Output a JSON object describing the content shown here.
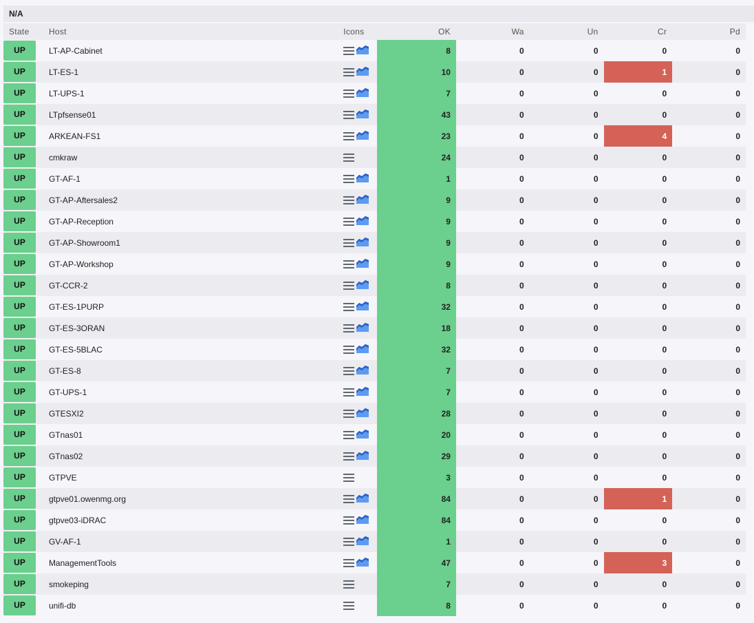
{
  "title": "N/A",
  "columns": [
    "State",
    "Host",
    "Icons",
    "OK",
    "Wa",
    "Un",
    "Cr",
    "Pd"
  ],
  "colors": {
    "up": "#6bcf8d",
    "crit": "#d46256"
  },
  "rows": [
    {
      "state": "UP",
      "host": "LT-AP-Cabinet",
      "graph": true,
      "ok": "8",
      "wa": "0",
      "un": "0",
      "cr": "0",
      "pd": "0"
    },
    {
      "state": "UP",
      "host": "LT-ES-1",
      "graph": true,
      "ok": "10",
      "wa": "0",
      "un": "0",
      "cr": "1",
      "pd": "0"
    },
    {
      "state": "UP",
      "host": "LT-UPS-1",
      "graph": true,
      "ok": "7",
      "wa": "0",
      "un": "0",
      "cr": "0",
      "pd": "0"
    },
    {
      "state": "UP",
      "host": "LTpfsense01",
      "graph": true,
      "ok": "43",
      "wa": "0",
      "un": "0",
      "cr": "0",
      "pd": "0"
    },
    {
      "state": "UP",
      "host": "ARKEAN-FS1",
      "graph": true,
      "ok": "23",
      "wa": "0",
      "un": "0",
      "cr": "4",
      "pd": "0"
    },
    {
      "state": "UP",
      "host": "cmkraw",
      "graph": false,
      "ok": "24",
      "wa": "0",
      "un": "0",
      "cr": "0",
      "pd": "0"
    },
    {
      "state": "UP",
      "host": "GT-AF-1",
      "graph": true,
      "ok": "1",
      "wa": "0",
      "un": "0",
      "cr": "0",
      "pd": "0"
    },
    {
      "state": "UP",
      "host": "GT-AP-Aftersales2",
      "graph": true,
      "ok": "9",
      "wa": "0",
      "un": "0",
      "cr": "0",
      "pd": "0"
    },
    {
      "state": "UP",
      "host": "GT-AP-Reception",
      "graph": true,
      "ok": "9",
      "wa": "0",
      "un": "0",
      "cr": "0",
      "pd": "0"
    },
    {
      "state": "UP",
      "host": "GT-AP-Showroom1",
      "graph": true,
      "ok": "9",
      "wa": "0",
      "un": "0",
      "cr": "0",
      "pd": "0"
    },
    {
      "state": "UP",
      "host": "GT-AP-Workshop",
      "graph": true,
      "ok": "9",
      "wa": "0",
      "un": "0",
      "cr": "0",
      "pd": "0"
    },
    {
      "state": "UP",
      "host": "GT-CCR-2",
      "graph": true,
      "ok": "8",
      "wa": "0",
      "un": "0",
      "cr": "0",
      "pd": "0"
    },
    {
      "state": "UP",
      "host": "GT-ES-1PURP",
      "graph": true,
      "ok": "32",
      "wa": "0",
      "un": "0",
      "cr": "0",
      "pd": "0"
    },
    {
      "state": "UP",
      "host": "GT-ES-3ORAN",
      "graph": true,
      "ok": "18",
      "wa": "0",
      "un": "0",
      "cr": "0",
      "pd": "0"
    },
    {
      "state": "UP",
      "host": "GT-ES-5BLAC",
      "graph": true,
      "ok": "32",
      "wa": "0",
      "un": "0",
      "cr": "0",
      "pd": "0"
    },
    {
      "state": "UP",
      "host": "GT-ES-8",
      "graph": true,
      "ok": "7",
      "wa": "0",
      "un": "0",
      "cr": "0",
      "pd": "0"
    },
    {
      "state": "UP",
      "host": "GT-UPS-1",
      "graph": true,
      "ok": "7",
      "wa": "0",
      "un": "0",
      "cr": "0",
      "pd": "0"
    },
    {
      "state": "UP",
      "host": "GTESXI2",
      "graph": true,
      "ok": "28",
      "wa": "0",
      "un": "0",
      "cr": "0",
      "pd": "0"
    },
    {
      "state": "UP",
      "host": "GTnas01",
      "graph": true,
      "ok": "20",
      "wa": "0",
      "un": "0",
      "cr": "0",
      "pd": "0"
    },
    {
      "state": "UP",
      "host": "GTnas02",
      "graph": true,
      "ok": "29",
      "wa": "0",
      "un": "0",
      "cr": "0",
      "pd": "0"
    },
    {
      "state": "UP",
      "host": "GTPVE",
      "graph": false,
      "ok": "3",
      "wa": "0",
      "un": "0",
      "cr": "0",
      "pd": "0"
    },
    {
      "state": "UP",
      "host": "gtpve01.owenmg.org",
      "graph": true,
      "ok": "84",
      "wa": "0",
      "un": "0",
      "cr": "1",
      "pd": "0"
    },
    {
      "state": "UP",
      "host": "gtpve03-iDRAC",
      "graph": true,
      "ok": "84",
      "wa": "0",
      "un": "0",
      "cr": "0",
      "pd": "0"
    },
    {
      "state": "UP",
      "host": "GV-AF-1",
      "graph": true,
      "ok": "1",
      "wa": "0",
      "un": "0",
      "cr": "0",
      "pd": "0"
    },
    {
      "state": "UP",
      "host": "ManagementTools",
      "graph": true,
      "ok": "47",
      "wa": "0",
      "un": "0",
      "cr": "3",
      "pd": "0"
    },
    {
      "state": "UP",
      "host": "smokeping",
      "graph": false,
      "ok": "7",
      "wa": "0",
      "un": "0",
      "cr": "0",
      "pd": "0"
    },
    {
      "state": "UP",
      "host": "unifi-db",
      "graph": false,
      "ok": "8",
      "wa": "0",
      "un": "0",
      "cr": "0",
      "pd": "0"
    }
  ]
}
